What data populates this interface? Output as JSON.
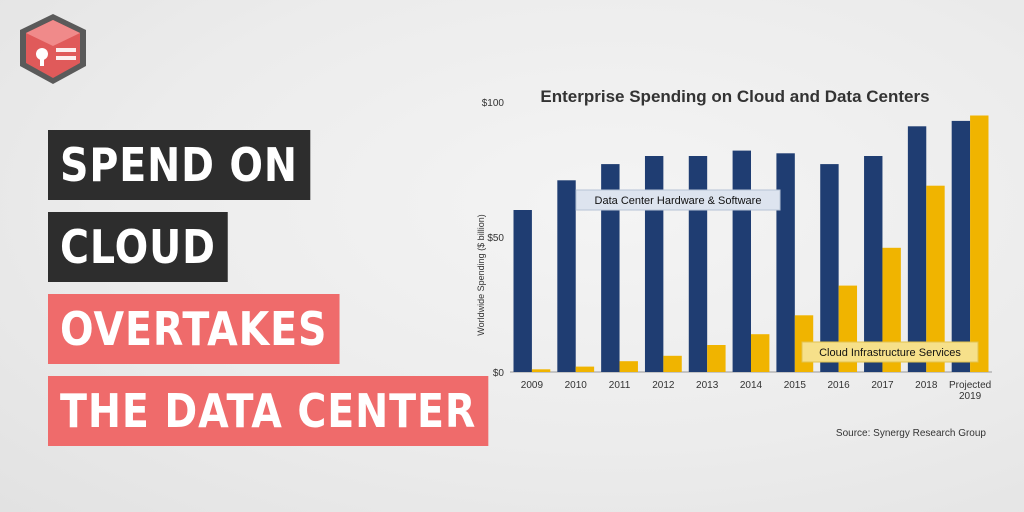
{
  "headline": {
    "lines": [
      "SPEND ON",
      "CLOUD",
      "OVERTAKES",
      "THE DATA CENTER"
    ]
  },
  "colors": {
    "logo": "#e05a5a",
    "dark_label": "#2d2d2d",
    "red_label": "#ef6b6b",
    "series_datacenter": "#1f3d72",
    "series_cloud": "#f0b400"
  },
  "chart_data": {
    "type": "bar",
    "title": "Enterprise Spending on Cloud and Data Centers",
    "ylabel": "Worldwide Spending ($ billion)",
    "xlabel": "",
    "categories": [
      "2009",
      "2010",
      "2011",
      "2012",
      "2013",
      "2014",
      "2015",
      "2016",
      "2017",
      "2018",
      "Projected 2019"
    ],
    "ylim": [
      0,
      100
    ],
    "yticks": [
      "$0",
      "$50",
      "$100"
    ],
    "series": [
      {
        "name": "Data Center Hardware & Software",
        "values": [
          60,
          71,
          77,
          80,
          80,
          82,
          81,
          77,
          80,
          91,
          93
        ]
      },
      {
        "name": "Cloud Infrastructure Services",
        "values": [
          1,
          2,
          4,
          6,
          10,
          14,
          21,
          32,
          46,
          69,
          95
        ]
      }
    ],
    "source": "Source: Synergy Research Group",
    "grid": false
  }
}
